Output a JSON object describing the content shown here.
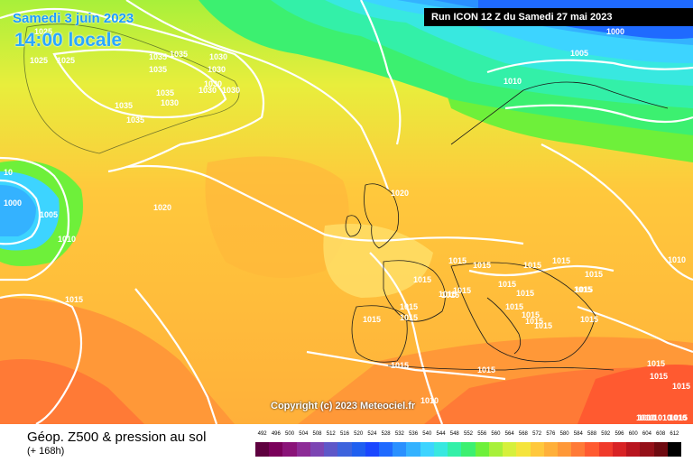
{
  "header": {
    "run_text": "Run ICON 12 Z du Samedi 27 mai 2023",
    "date_text": "Samedi 3 juin 2023",
    "time_text": "14:00 locale"
  },
  "footer": {
    "title": "Géop. Z500 & pression au sol",
    "subtitle": "(+ 168h)",
    "copyright": "Copyright (c) 2023 Meteociel.fr"
  },
  "legend": {
    "labels": [
      "492",
      "496",
      "500",
      "504",
      "508",
      "512",
      "516",
      "520",
      "524",
      "528",
      "532",
      "536",
      "540",
      "544",
      "548",
      "552",
      "556",
      "560",
      "564",
      "568",
      "572",
      "576",
      "580",
      "584",
      "588",
      "592",
      "596",
      "600",
      "604",
      "608",
      "612"
    ],
    "colors": [
      "#5e003f",
      "#7a005a",
      "#8a1378",
      "#8d2b96",
      "#7c45b3",
      "#5e57c8",
      "#3d63dd",
      "#1f5ff0",
      "#1a47ff",
      "#1f6aff",
      "#2a90ff",
      "#34b2ff",
      "#3dd4ff",
      "#38e8e0",
      "#33f0a8",
      "#3cf070",
      "#6ef03a",
      "#a8f03a",
      "#d6f03c",
      "#f5e43c",
      "#ffc83c",
      "#ffb03a",
      "#ff9838",
      "#ff7a36",
      "#ff5a30",
      "#f03a2a",
      "#d82224",
      "#b8141e",
      "#941018",
      "#6e0a10",
      "#000000"
    ]
  },
  "pressure_labels": [
    "1025",
    "1025",
    "1035",
    "1030",
    "1035",
    "1030",
    "1035",
    "1030",
    "1030",
    "1035",
    "1030",
    "1030",
    "1035",
    "1025",
    "1035",
    "1000",
    "1005",
    "1010",
    "1020",
    "1015",
    "1020",
    "1000",
    "1005",
    "1010",
    "1010",
    "1015",
    "1015",
    "1015",
    "1015",
    "1015",
    "1015",
    "1015",
    "1015",
    "1015",
    "1015",
    "1015",
    "1015",
    "1015",
    "1015",
    "1015",
    "1015",
    "1015",
    "1015",
    "1015",
    "1015",
    "1015",
    "1015",
    "1015",
    "1015",
    "1015",
    "1010",
    "1010",
    "1010",
    "1015",
    "1015",
    "10",
    "1010",
    "1010",
    "1010"
  ]
}
